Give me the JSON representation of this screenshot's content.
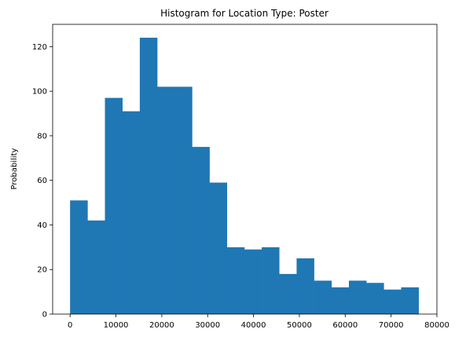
{
  "chart_data": {
    "type": "bar",
    "title": "Histogram for Location Type: Poster",
    "xlabel": "",
    "ylabel": "Probability",
    "xlim": [
      -3800,
      80000
    ],
    "ylim": [
      0,
      130
    ],
    "bin_width": 3800,
    "bin_edges": [
      0,
      3800,
      7600,
      11400,
      15200,
      19000,
      22800,
      26600,
      30400,
      34200,
      38000,
      41800,
      45600,
      49400,
      53200,
      57000,
      60800,
      64600,
      68400,
      72200,
      76000
    ],
    "values": [
      51,
      42,
      97,
      91,
      124,
      102,
      102,
      75,
      59,
      30,
      29,
      30,
      18,
      25,
      15,
      12,
      15,
      14,
      11,
      12
    ],
    "x_ticks": [
      0,
      10000,
      20000,
      30000,
      40000,
      50000,
      60000,
      70000,
      80000
    ],
    "x_tick_labels": [
      "0",
      "10000",
      "20000",
      "30000",
      "40000",
      "50000",
      "60000",
      "70000",
      "80000"
    ],
    "y_ticks": [
      0,
      20,
      40,
      60,
      80,
      100,
      120
    ],
    "y_tick_labels": [
      "0",
      "20",
      "40",
      "60",
      "80",
      "100",
      "120"
    ],
    "grid": false,
    "legend": "none",
    "bar_color": "#1f77b4"
  }
}
